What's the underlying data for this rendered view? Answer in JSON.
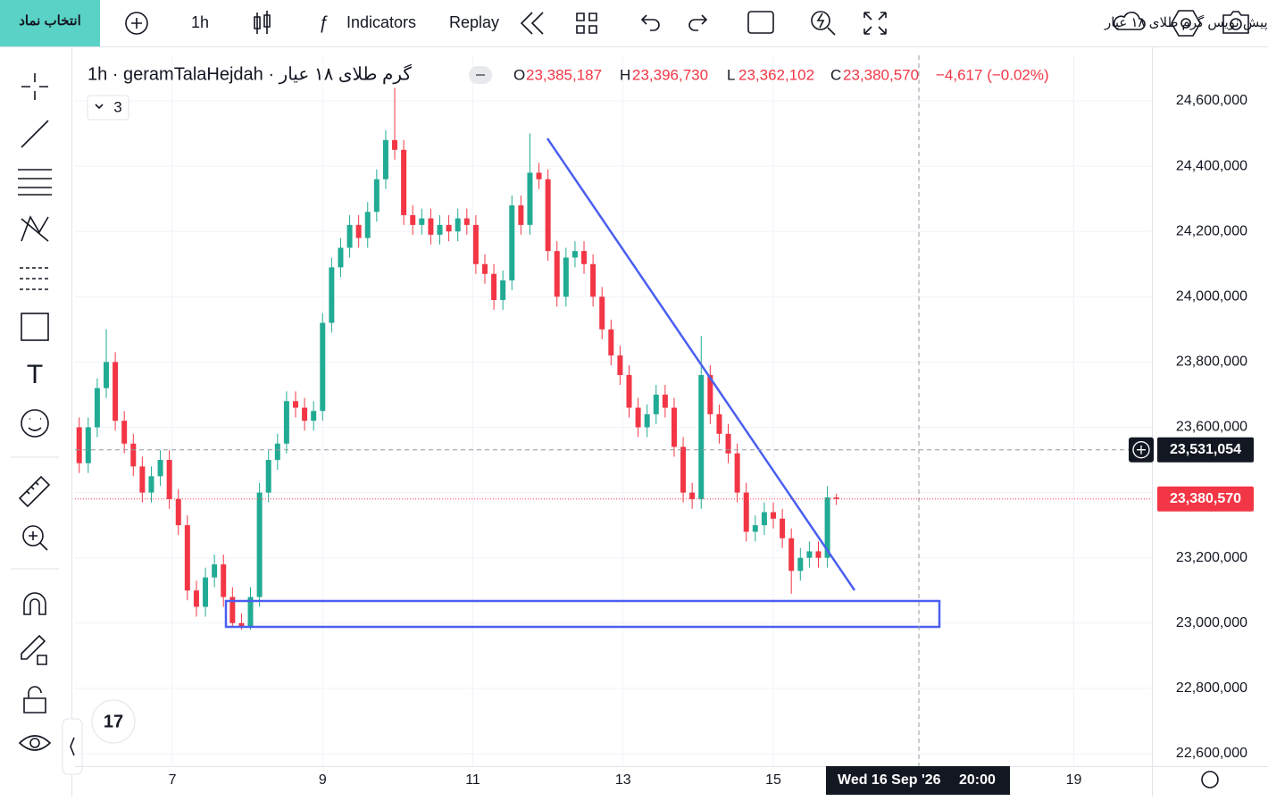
{
  "toolbar": {
    "symbol_button": "انتخاب نماد",
    "interval": "1h",
    "indicators": "Indicators",
    "replay": "Replay",
    "layout_name": "پیش نویس گرم طلای ۱۸ عیار"
  },
  "chart_data": {
    "type": "candlestick",
    "title": "گرم طلای ۱۸ عیار · 1h · geramTalaHejdah",
    "indicator_count": "3",
    "ohlc_legend": {
      "o_label": "O",
      "open": {
        "value": 23385187,
        "label": "23,385,187"
      },
      "h_label": "H",
      "high": {
        "value": 23396730,
        "label": "23,396,730"
      },
      "l_label": "L",
      "low": {
        "value": 23362102,
        "label": "23,362,102"
      },
      "c_label": "C",
      "close": {
        "value": 23380570,
        "label": "23,380,570"
      },
      "change": "−4,617 (−0.02%)"
    },
    "up_color": "#22ab94",
    "down_color": "#f23645",
    "x": [
      5.76,
      5.88,
      6.0,
      6.12,
      6.24,
      6.36,
      6.48,
      6.6,
      6.72,
      6.84,
      6.96,
      7.08,
      7.2,
      7.32,
      7.44,
      7.56,
      7.68,
      7.8,
      7.92,
      8.04,
      8.16,
      8.28,
      8.4,
      8.52,
      8.64,
      8.76,
      8.88,
      9.0,
      9.12,
      9.24,
      9.36,
      9.48,
      9.6,
      9.72,
      9.84,
      9.96,
      10.08,
      10.2,
      10.32,
      10.44,
      10.56,
      10.68,
      10.8,
      10.92,
      11.04,
      11.16,
      11.28,
      11.4,
      11.52,
      11.64,
      11.76,
      11.88,
      12.0,
      12.12,
      12.24,
      12.36,
      12.48,
      12.6,
      12.72,
      12.84,
      12.96,
      13.08,
      13.2,
      13.32,
      13.44,
      13.56,
      13.68,
      13.8,
      13.92,
      14.04,
      14.16,
      14.28,
      14.4,
      14.52,
      14.64,
      14.76,
      14.88,
      15.0,
      15.12,
      15.24,
      15.36,
      15.48,
      15.6,
      15.72,
      15.84
    ],
    "open": [
      23600000,
      23490000,
      23600000,
      23720000,
      23800000,
      23620000,
      23550000,
      23480000,
      23400000,
      23450000,
      23500000,
      23380000,
      23300000,
      23100000,
      23050000,
      23140000,
      23180000,
      23080000,
      23000000,
      22990000,
      23080000,
      23400000,
      23500000,
      23550000,
      23680000,
      23660000,
      23620000,
      23650000,
      23920000,
      24090000,
      24150000,
      24220000,
      24180000,
      24260000,
      24360000,
      24480000,
      24450000,
      24250000,
      24220000,
      24240000,
      24190000,
      24220000,
      24200000,
      24240000,
      24220000,
      24100000,
      24070000,
      23990000,
      24050000,
      24280000,
      24220000,
      24380000,
      24360000,
      24140000,
      24000000,
      24120000,
      24140000,
      24100000,
      24000000,
      23900000,
      23820000,
      23760000,
      23660000,
      23600000,
      23640000,
      23700000,
      23660000,
      23540000,
      23400000,
      23380000,
      23760000,
      23640000,
      23580000,
      23520000,
      23400000,
      23280000,
      23300000,
      23340000,
      23320000,
      23260000,
      23160000,
      23200000,
      23220000,
      23200000,
      23385187
    ],
    "high": [
      23630000,
      23630000,
      23750000,
      23900000,
      23830000,
      23650000,
      23580000,
      23510000,
      23480000,
      23530000,
      23530000,
      23410000,
      23330000,
      23130000,
      23170000,
      23210000,
      23210000,
      23110000,
      23030000,
      23110000,
      23430000,
      23530000,
      23580000,
      23710000,
      23710000,
      23690000,
      23680000,
      23950000,
      24120000,
      24180000,
      24250000,
      24250000,
      24290000,
      24390000,
      24510000,
      24640000,
      24480000,
      24280000,
      24270000,
      24270000,
      24250000,
      24250000,
      24270000,
      24270000,
      24250000,
      24130000,
      24100000,
      24080000,
      24310000,
      24310000,
      24500000,
      24410000,
      24390000,
      24170000,
      24150000,
      24170000,
      24170000,
      24130000,
      24030000,
      23930000,
      23850000,
      23790000,
      23690000,
      23670000,
      23730000,
      23730000,
      23690000,
      23570000,
      23430000,
      23880000,
      23790000,
      23670000,
      23610000,
      23550000,
      23430000,
      23330000,
      23370000,
      23370000,
      23350000,
      23290000,
      23230000,
      23250000,
      23250000,
      23420000,
      23396730
    ],
    "low": [
      23460000,
      23460000,
      23570000,
      23690000,
      23590000,
      23520000,
      23450000,
      23370000,
      23370000,
      23420000,
      23350000,
      23270000,
      23070000,
      23020000,
      23020000,
      23110000,
      23050000,
      22990000,
      22980000,
      22980000,
      23050000,
      23370000,
      23470000,
      23520000,
      23630000,
      23590000,
      23590000,
      23620000,
      23890000,
      24060000,
      24120000,
      24150000,
      24150000,
      24230000,
      24330000,
      24420000,
      24220000,
      24190000,
      24190000,
      24160000,
      24160000,
      24170000,
      24170000,
      24190000,
      24070000,
      24040000,
      23960000,
      23960000,
      24020000,
      24190000,
      24190000,
      24330000,
      24110000,
      23970000,
      23970000,
      24090000,
      24070000,
      23970000,
      23870000,
      23790000,
      23730000,
      23630000,
      23570000,
      23570000,
      23610000,
      23630000,
      23510000,
      23370000,
      23350000,
      23350000,
      23610000,
      23550000,
      23490000,
      23370000,
      23250000,
      23250000,
      23270000,
      23290000,
      23230000,
      23090000,
      23130000,
      23170000,
      23170000,
      23170000,
      23362102
    ],
    "close": [
      23490000,
      23600000,
      23720000,
      23800000,
      23620000,
      23550000,
      23480000,
      23400000,
      23450000,
      23500000,
      23380000,
      23300000,
      23100000,
      23050000,
      23140000,
      23180000,
      23080000,
      23000000,
      22990000,
      23080000,
      23400000,
      23500000,
      23550000,
      23680000,
      23660000,
      23620000,
      23650000,
      23920000,
      24090000,
      24150000,
      24220000,
      24180000,
      24260000,
      24360000,
      24480000,
      24450000,
      24250000,
      24220000,
      24240000,
      24190000,
      24220000,
      24200000,
      24240000,
      24220000,
      24100000,
      24070000,
      23990000,
      24050000,
      24280000,
      24220000,
      24380000,
      24360000,
      24140000,
      24000000,
      24120000,
      24140000,
      24100000,
      24000000,
      23900000,
      23820000,
      23760000,
      23660000,
      23600000,
      23640000,
      23700000,
      23660000,
      23540000,
      23400000,
      23380000,
      23760000,
      23640000,
      23580000,
      23520000,
      23400000,
      23280000,
      23300000,
      23340000,
      23320000,
      23260000,
      23160000,
      23200000,
      23220000,
      23200000,
      23385187,
      23380570
    ],
    "xlim": [
      5.704,
      20.04
    ],
    "xticks": [
      7,
      9,
      11,
      13,
      15,
      19
    ],
    "ylim": [
      22561700,
      24739500
    ],
    "yticks": [
      {
        "value": 24600000,
        "label": "24,600,000"
      },
      {
        "value": 24400000,
        "label": "24,400,000"
      },
      {
        "value": 24200000,
        "label": "24,200,000"
      },
      {
        "value": 24000000,
        "label": "24,000,000"
      },
      {
        "value": 23800000,
        "label": "23,800,000"
      },
      {
        "value": 23600000,
        "label": "23,600,000"
      },
      {
        "value": 23400000,
        "label": "23,400,000"
      },
      {
        "value": 23200000,
        "label": "23,200,000"
      },
      {
        "value": 23000000,
        "label": "23,000,000"
      },
      {
        "value": 22800000,
        "label": "22,800,000"
      },
      {
        "value": 22600000,
        "label": "22,600,000"
      }
    ],
    "grid": true,
    "crosshair_price": {
      "value": 23531054,
      "label": "23,531,054"
    },
    "last_price": {
      "value": 23380570,
      "label": "23,380,570"
    },
    "crosshair_time": [
      "Wed 16 Sep '26",
      "20:00"
    ]
  }
}
